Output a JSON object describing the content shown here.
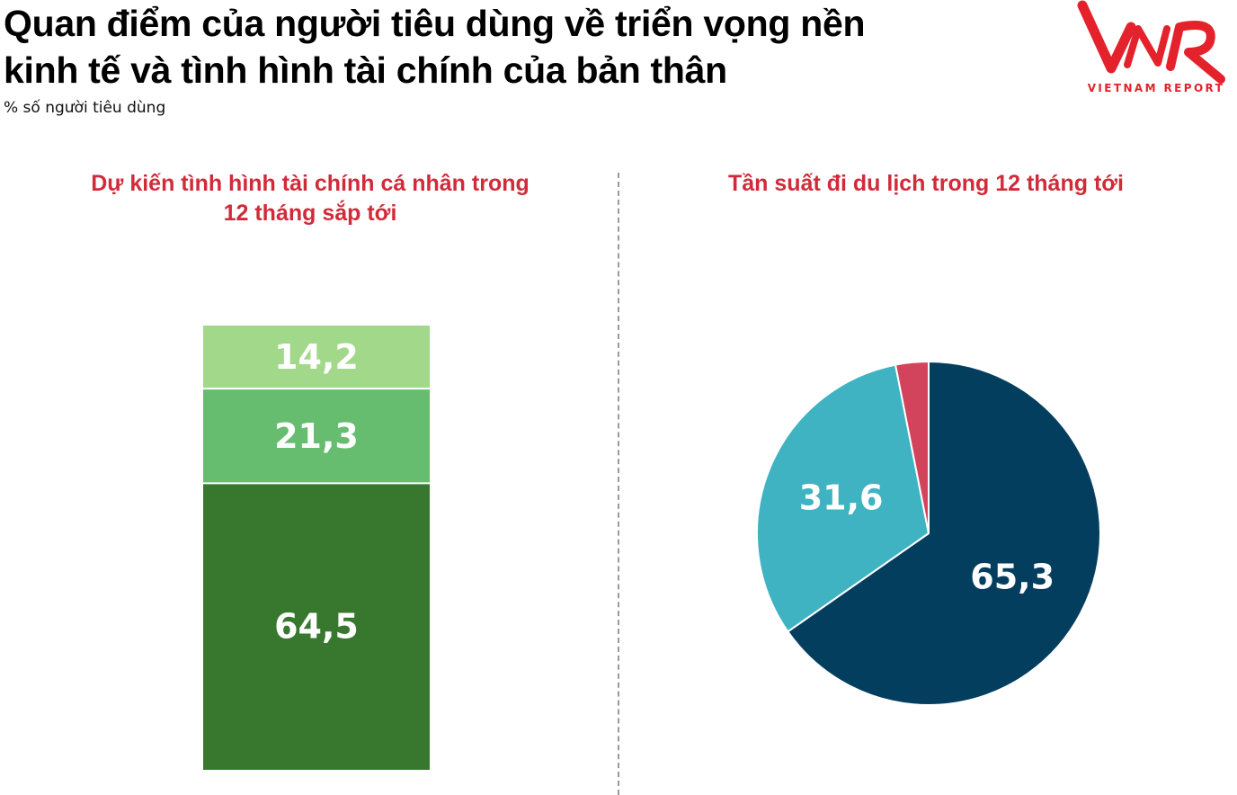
{
  "header": {
    "title": "Quan điểm của người tiêu dùng về triển vọng nền kinh tế và tình hình tài chính của bản thân",
    "subtitle": "% số người tiêu dùng"
  },
  "logo": {
    "mark": "VNR",
    "caption": "VIETNAM REPORT",
    "color": "#e4222c"
  },
  "chart_data": [
    {
      "type": "bar",
      "stacked": true,
      "title": "Dự kiến tình hình tài chính cá nhân trong 12 tháng sắp tới",
      "series": [
        {
          "values": [
            64.5
          ],
          "color": "#38782e"
        },
        {
          "values": [
            21.3
          ],
          "color": "#67bd6f"
        },
        {
          "values": [
            14.2
          ],
          "color": "#a2d889"
        }
      ],
      "legend": "none",
      "grid": false
    },
    {
      "type": "pie",
      "title": "Tần suất đi du lịch trong 12 tháng tới",
      "slices": [
        {
          "value": 65.3,
          "color": "#033e5f"
        },
        {
          "value": 31.6,
          "color": "#3fb3c1"
        },
        {
          "value": 3.1,
          "color": "#d3445c"
        }
      ],
      "legend": "none"
    }
  ]
}
